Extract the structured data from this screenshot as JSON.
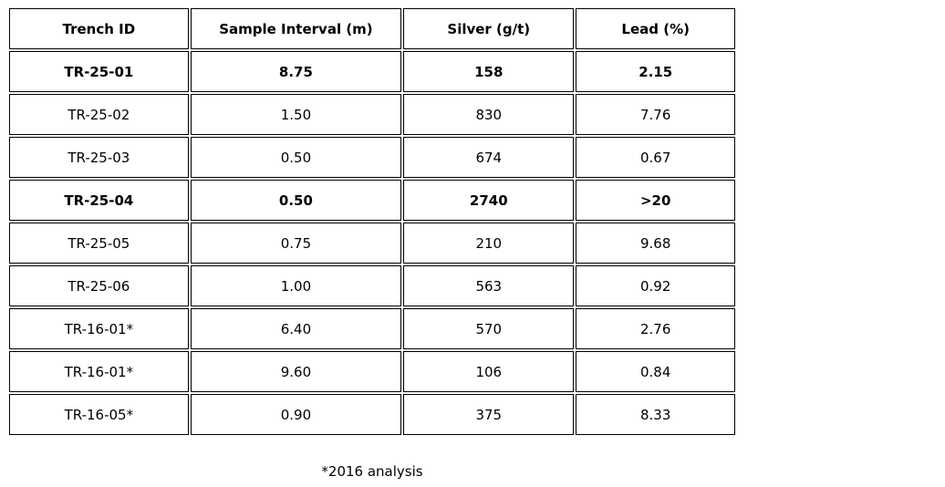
{
  "chart_data": {
    "type": "table",
    "columns": [
      "Trench ID",
      "Sample Interval (m)",
      "Silver (g/t)",
      "Lead (%)"
    ],
    "rows": [
      {
        "cells": [
          "TR-25-01",
          "8.75",
          "158",
          "2.15"
        ],
        "bold": true
      },
      {
        "cells": [
          "TR-25-02",
          "1.50",
          "830",
          "7.76"
        ],
        "bold": false
      },
      {
        "cells": [
          "TR-25-03",
          "0.50",
          "674",
          "0.67"
        ],
        "bold": false
      },
      {
        "cells": [
          "TR-25-04",
          "0.50",
          "2740",
          ">20"
        ],
        "bold": true
      },
      {
        "cells": [
          "TR-25-05",
          "0.75",
          "210",
          "9.68"
        ],
        "bold": false
      },
      {
        "cells": [
          "TR-25-06",
          "1.00",
          "563",
          "0.92"
        ],
        "bold": false
      },
      {
        "cells": [
          "TR-16-01*",
          "6.40",
          "570",
          "2.76"
        ],
        "bold": false
      },
      {
        "cells": [
          "TR-16-01*",
          "9.60",
          "106",
          "0.84"
        ],
        "bold": false
      },
      {
        "cells": [
          "TR-16-05*",
          "0.90",
          "375",
          "8.33"
        ],
        "bold": false
      }
    ],
    "footnote": "*2016 analysis",
    "column_widths_pct": [
      24.9,
      29.3,
      23.7,
      22.1
    ],
    "layout_hints": {
      "grid": "all-borders",
      "header_bold": true,
      "bold_highlight_rows": [
        "TR-25-01",
        "TR-25-04"
      ]
    }
  },
  "colors": {
    "border": "#000000",
    "text": "#000000",
    "background": "#ffffff"
  }
}
